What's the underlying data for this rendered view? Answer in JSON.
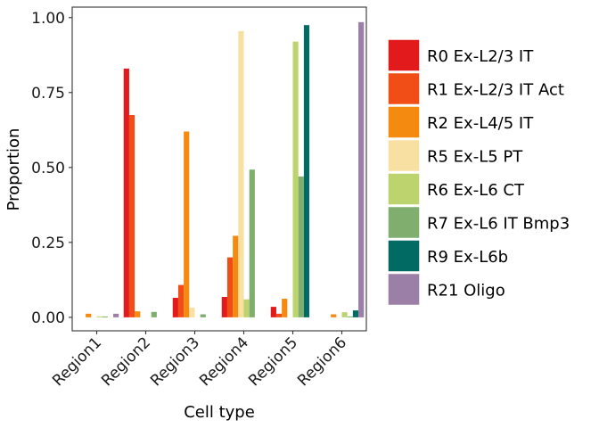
{
  "chart_data": {
    "type": "bar",
    "xlabel": "Cell type",
    "ylabel": "Proportion",
    "ylim": [
      -0.045,
      1.035
    ],
    "yticks": [
      "0.00",
      "0.25",
      "0.50",
      "0.75",
      "1.00"
    ],
    "ytick_values": [
      0,
      0.25,
      0.5,
      0.75,
      1.0
    ],
    "grid": false,
    "legend_position": "right",
    "categories": [
      "Region1",
      "Region2",
      "Region3",
      "Region4",
      "Region5",
      "Region6"
    ],
    "series": [
      {
        "name": "R0 Ex-L2/3 IT",
        "color": "#e31a1c",
        "values": [
          0.0,
          0.83,
          0.065,
          0.068,
          0.035,
          0.0
        ]
      },
      {
        "name": "R1 Ex-L2/3 IT Act",
        "color": "#f04e16",
        "values": [
          0.0,
          0.675,
          0.108,
          0.2,
          0.012,
          0.0
        ]
      },
      {
        "name": "R2 Ex-L4/5 IT",
        "color": "#f58a11",
        "values": [
          0.012,
          0.02,
          0.62,
          0.272,
          0.062,
          0.01
        ]
      },
      {
        "name": "R5 Ex-L5 PT",
        "color": "#f8e0a2",
        "values": [
          0.0,
          0.0,
          0.032,
          0.955,
          0.0,
          0.0
        ]
      },
      {
        "name": "R6 Ex-L6 CT",
        "color": "#bdd46e",
        "values": [
          0.003,
          0.0,
          0.0,
          0.06,
          0.92,
          0.017
        ]
      },
      {
        "name": "R7 Ex-L6 IT Bmp3",
        "color": "#7fae6e",
        "values": [
          0.003,
          0.018,
          0.01,
          0.493,
          0.47,
          0.003
        ]
      },
      {
        "name": "R9 Ex-L6b",
        "color": "#006a63",
        "values": [
          0.0,
          0.0,
          0.0,
          0.0,
          0.975,
          0.023
        ]
      },
      {
        "name": "R21 Oligo",
        "color": "#9c7fa6",
        "values": [
          0.012,
          0.0,
          0.0,
          0.0,
          0.0,
          0.985
        ]
      }
    ]
  }
}
